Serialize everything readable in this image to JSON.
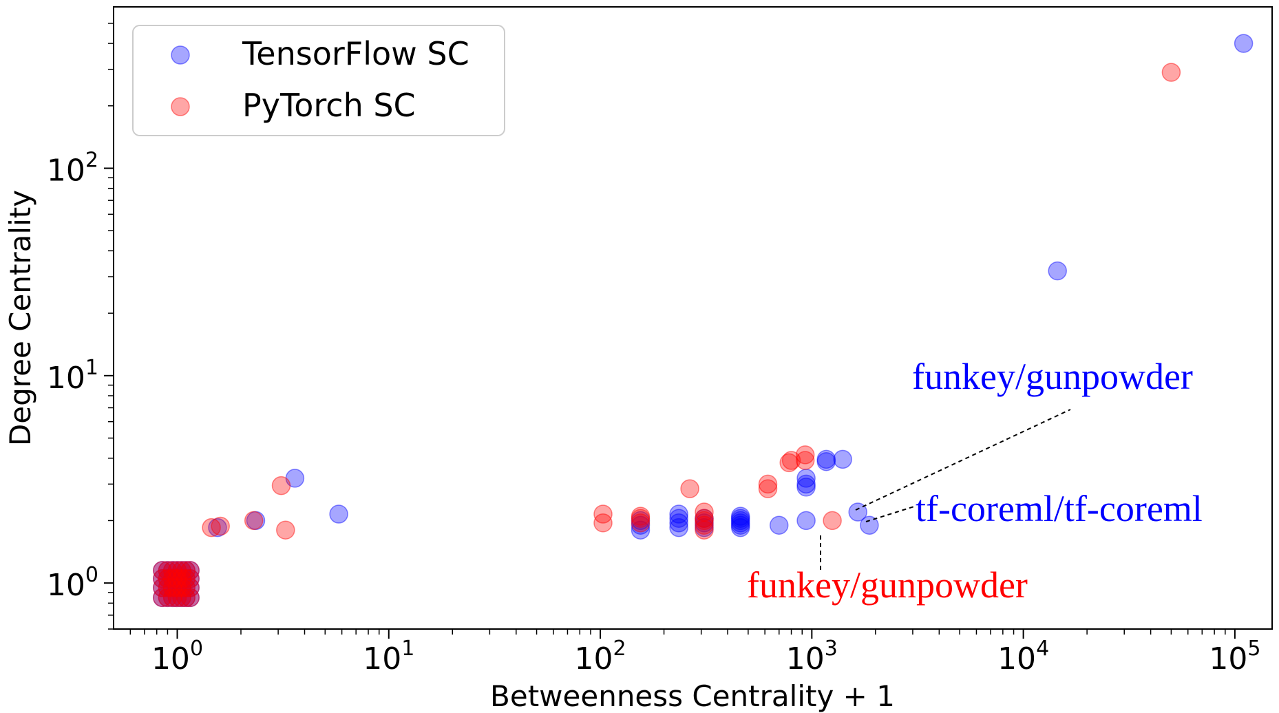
{
  "chart_data": {
    "type": "scatter",
    "xlabel": "Betweenness Centrality + 1",
    "ylabel": "Degree Centrality",
    "xscale": "log",
    "yscale": "log",
    "xlim": [
      0.5,
      150000
    ],
    "ylim": [
      0.6,
      600
    ],
    "xticks": [
      {
        "value": 1,
        "base": "10",
        "exp": "0"
      },
      {
        "value": 10,
        "base": "10",
        "exp": "1"
      },
      {
        "value": 100,
        "base": "10",
        "exp": "2"
      },
      {
        "value": 1000,
        "base": "10",
        "exp": "3"
      },
      {
        "value": 10000,
        "base": "10",
        "exp": "4"
      },
      {
        "value": 100000,
        "base": "10",
        "exp": "5"
      }
    ],
    "yticks": [
      {
        "value": 1,
        "base": "10",
        "exp": "0"
      },
      {
        "value": 10,
        "base": "10",
        "exp": "1"
      },
      {
        "value": 100,
        "base": "10",
        "exp": "2"
      }
    ],
    "grid": false,
    "legend_position": "top-left",
    "series": [
      {
        "name": "TensorFlow SC",
        "color": "#0000ff",
        "points": [
          [
            0.85,
            0.85
          ],
          [
            0.9,
            0.85
          ],
          [
            0.95,
            0.85
          ],
          [
            1.0,
            0.85
          ],
          [
            1.05,
            0.85
          ],
          [
            1.1,
            0.85
          ],
          [
            1.15,
            0.85
          ],
          [
            0.85,
            0.95
          ],
          [
            0.9,
            0.95
          ],
          [
            0.95,
            0.95
          ],
          [
            1.0,
            0.95
          ],
          [
            1.05,
            0.95
          ],
          [
            1.1,
            0.95
          ],
          [
            1.15,
            0.95
          ],
          [
            0.85,
            1.05
          ],
          [
            0.9,
            1.05
          ],
          [
            0.95,
            1.05
          ],
          [
            1.0,
            1.05
          ],
          [
            1.05,
            1.05
          ],
          [
            1.1,
            1.05
          ],
          [
            1.15,
            1.05
          ],
          [
            0.85,
            1.15
          ],
          [
            0.9,
            1.15
          ],
          [
            0.95,
            1.15
          ],
          [
            1.0,
            1.15
          ],
          [
            1.05,
            1.15
          ],
          [
            1.1,
            1.15
          ],
          [
            1.15,
            1.15
          ],
          [
            1.55,
            1.85
          ],
          [
            2.35,
            2.0
          ],
          [
            3.6,
            3.2
          ],
          [
            5.8,
            2.15
          ],
          [
            155,
            1.8
          ],
          [
            155,
            1.9
          ],
          [
            155,
            2.0
          ],
          [
            235,
            1.85
          ],
          [
            235,
            1.95
          ],
          [
            235,
            2.05
          ],
          [
            235,
            2.15
          ],
          [
            310,
            1.85
          ],
          [
            310,
            1.95
          ],
          [
            310,
            2.05
          ],
          [
            460,
            1.85
          ],
          [
            460,
            1.9
          ],
          [
            460,
            1.95
          ],
          [
            460,
            2.0
          ],
          [
            460,
            2.05
          ],
          [
            460,
            2.1
          ],
          [
            700,
            1.9
          ],
          [
            940,
            2.0
          ],
          [
            940,
            2.9
          ],
          [
            940,
            3.0
          ],
          [
            940,
            3.2
          ],
          [
            1170,
            3.85
          ],
          [
            1170,
            3.95
          ],
          [
            1400,
            3.95
          ],
          [
            1650,
            2.2
          ],
          [
            1870,
            1.9
          ],
          [
            14500,
            32
          ],
          [
            110000,
            400
          ]
        ]
      },
      {
        "name": "PyTorch SC",
        "color": "#ff0000",
        "points": [
          [
            0.85,
            0.85
          ],
          [
            0.9,
            0.85
          ],
          [
            0.95,
            0.85
          ],
          [
            1.0,
            0.85
          ],
          [
            1.05,
            0.85
          ],
          [
            1.1,
            0.85
          ],
          [
            1.15,
            0.85
          ],
          [
            0.85,
            0.95
          ],
          [
            0.9,
            0.95
          ],
          [
            0.95,
            0.95
          ],
          [
            1.0,
            0.95
          ],
          [
            1.05,
            0.95
          ],
          [
            1.1,
            0.95
          ],
          [
            1.15,
            0.95
          ],
          [
            0.85,
            1.05
          ],
          [
            0.9,
            1.05
          ],
          [
            0.95,
            1.05
          ],
          [
            1.0,
            1.05
          ],
          [
            1.05,
            1.05
          ],
          [
            1.1,
            1.05
          ],
          [
            1.15,
            1.05
          ],
          [
            0.85,
            1.15
          ],
          [
            0.9,
            1.15
          ],
          [
            0.95,
            1.15
          ],
          [
            1.0,
            1.15
          ],
          [
            1.05,
            1.15
          ],
          [
            1.1,
            1.15
          ],
          [
            1.15,
            1.15
          ],
          [
            1.45,
            1.85
          ],
          [
            1.6,
            1.88
          ],
          [
            2.3,
            2.0
          ],
          [
            3.1,
            2.95
          ],
          [
            3.25,
            1.8
          ],
          [
            103,
            2.15
          ],
          [
            103,
            1.95
          ],
          [
            155,
            1.95
          ],
          [
            155,
            2.05
          ],
          [
            155,
            2.1
          ],
          [
            265,
            2.85
          ],
          [
            310,
            1.8
          ],
          [
            310,
            1.9
          ],
          [
            310,
            2.0
          ],
          [
            310,
            2.05
          ],
          [
            310,
            2.2
          ],
          [
            620,
            2.85
          ],
          [
            620,
            3.0
          ],
          [
            780,
            3.8
          ],
          [
            800,
            3.9
          ],
          [
            930,
            3.9
          ],
          [
            930,
            4.15
          ],
          [
            1250,
            2.0
          ],
          [
            50000,
            290
          ]
        ]
      }
    ],
    "annotations": [
      {
        "text": "funkey/gunpowder",
        "color": "#0000ff",
        "target": [
          1650,
          2.2
        ]
      },
      {
        "text": "tf-coreml/tf-coreml",
        "color": "#0000ff",
        "target": [
          1870,
          1.9
        ]
      },
      {
        "text": "funkey/gunpowder",
        "color": "#ff0000",
        "target": [
          1250,
          2.0
        ]
      }
    ]
  }
}
